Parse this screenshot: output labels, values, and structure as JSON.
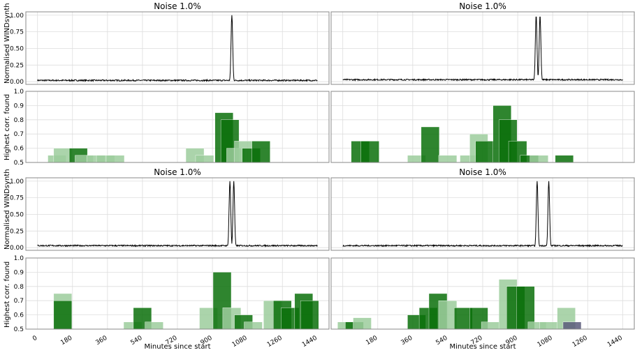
{
  "figure": {
    "ylabel_signal": "Normalised WINDsynth",
    "ylabel_corr": "Highest corr. found",
    "xlabel": "Minutes since start"
  },
  "colors": {
    "bar": "#2e8b2e",
    "bar_light": "#9ccc9c",
    "bar_dark": "#0a700a",
    "outlier": "#5a5a7a",
    "line": "#000000",
    "grid": "#dddddd"
  },
  "chart_data": [
    {
      "type": "line",
      "title": "Noise 1.0%",
      "ylabel": "Normalised WINDsynth",
      "xlim": [
        -60,
        1500
      ],
      "ylim": [
        -0.04,
        1.05
      ],
      "yticks": [
        "0.00",
        "0.25",
        "0.50",
        "0.75",
        "1.00"
      ],
      "noise": 0.02,
      "baseline": 0.02,
      "peaks": [
        [
          1000,
          1.0
        ]
      ]
    },
    {
      "type": "line",
      "title": "Noise 1.0%",
      "xlim": [
        -60,
        1500
      ],
      "ylim": [
        -0.04,
        1.05
      ],
      "yticks": [],
      "noise": 0.02,
      "baseline": 0.03,
      "peaks": [
        [
          995,
          1.0
        ],
        [
          1015,
          1.0
        ]
      ]
    },
    {
      "type": "bar",
      "ylabel": "Highest corr. found",
      "xlim": [
        -60,
        1500
      ],
      "ylim": [
        0.5,
        1.0
      ],
      "yticks": [
        "0.5",
        "0.6",
        "0.7",
        "0.8",
        "0.9",
        "1.0"
      ],
      "bars": [
        [
          100,
          0.55,
          "light"
        ],
        [
          130,
          0.6,
          "light"
        ],
        [
          210,
          0.6,
          "dark"
        ],
        [
          240,
          0.55,
          "light"
        ],
        [
          300,
          0.55,
          "light"
        ],
        [
          350,
          0.55,
          "light"
        ],
        [
          400,
          0.55,
          "light"
        ],
        [
          810,
          0.6,
          "light"
        ],
        [
          860,
          0.55,
          "light"
        ],
        [
          960,
          0.85,
          "dark"
        ],
        [
          990,
          0.8,
          "dark"
        ],
        [
          1020,
          0.6,
          "light"
        ],
        [
          1060,
          0.65,
          "light"
        ],
        [
          1100,
          0.6,
          "dark"
        ],
        [
          1150,
          0.65,
          "dark"
        ]
      ]
    },
    {
      "type": "bar",
      "xlim": [
        -60,
        1500
      ],
      "ylim": [
        0.5,
        1.0
      ],
      "yticks": [],
      "bars": [
        [
          90,
          0.65,
          "dark"
        ],
        [
          140,
          0.65,
          "dark"
        ],
        [
          380,
          0.55,
          "light"
        ],
        [
          450,
          0.75,
          "dark"
        ],
        [
          540,
          0.55,
          "light"
        ],
        [
          650,
          0.55,
          "light"
        ],
        [
          700,
          0.7,
          "light"
        ],
        [
          730,
          0.65,
          "dark"
        ],
        [
          820,
          0.9,
          "dark"
        ],
        [
          850,
          0.8,
          "dark"
        ],
        [
          900,
          0.65,
          "dark"
        ],
        [
          960,
          0.55,
          "dark"
        ],
        [
          1010,
          0.55,
          "light"
        ],
        [
          1140,
          0.55,
          "dark"
        ]
      ]
    },
    {
      "type": "line",
      "title": "Noise 1.0%",
      "ylabel": "Normalised WINDsynth",
      "xlim": [
        -60,
        1500
      ],
      "ylim": [
        -0.04,
        1.05
      ],
      "yticks": [
        "0.00",
        "0.25",
        "0.50",
        "0.75",
        "1.00"
      ],
      "noise": 0.02,
      "baseline": 0.03,
      "peaks": [
        [
          990,
          1.0
        ],
        [
          1010,
          1.0
        ]
      ]
    },
    {
      "type": "line",
      "title": "Noise 1.0%",
      "xlim": [
        -60,
        1500
      ],
      "ylim": [
        -0.04,
        1.05
      ],
      "yticks": [],
      "noise": 0.02,
      "baseline": 0.03,
      "peaks": [
        [
          1000,
          1.0
        ],
        [
          1060,
          1.0
        ]
      ]
    },
    {
      "type": "bar",
      "ylabel": "Highest corr. found",
      "xlabel": "Minutes since start",
      "xlim": [
        -60,
        1500
      ],
      "ylim": [
        0.5,
        1.0
      ],
      "yticks": [
        "0.5",
        "0.6",
        "0.7",
        "0.8",
        "0.9",
        "1.0"
      ],
      "xticks": [
        "0",
        "180",
        "360",
        "540",
        "720",
        "900",
        "1080",
        "1260",
        "1440"
      ],
      "xtick_values": [
        0,
        180,
        360,
        540,
        720,
        900,
        1080,
        1260,
        1440
      ],
      "bars": [
        [
          130,
          0.75,
          "light"
        ],
        [
          130,
          0.7,
          "dark"
        ],
        [
          490,
          0.55,
          "light"
        ],
        [
          540,
          0.65,
          "dark"
        ],
        [
          600,
          0.55,
          "light"
        ],
        [
          880,
          0.65,
          "light"
        ],
        [
          950,
          0.9,
          "dark"
        ],
        [
          1000,
          0.65,
          "light"
        ],
        [
          1060,
          0.6,
          "dark"
        ],
        [
          1110,
          0.55,
          "light"
        ],
        [
          1210,
          0.7,
          "light"
        ],
        [
          1260,
          0.7,
          "dark"
        ],
        [
          1300,
          0.65,
          "dark"
        ],
        [
          1370,
          0.75,
          "dark"
        ],
        [
          1400,
          0.7,
          "dark"
        ]
      ]
    },
    {
      "type": "bar",
      "xlabel": "Minutes since start",
      "xlim": [
        -60,
        1500
      ],
      "ylim": [
        0.5,
        1.0
      ],
      "yticks": [],
      "xticks": [
        "180",
        "360",
        "540",
        "720",
        "900",
        "1080",
        "1260",
        "1440"
      ],
      "xtick_values": [
        180,
        360,
        540,
        720,
        900,
        1080,
        1260,
        1440
      ],
      "bars": [
        [
          20,
          0.55,
          "light"
        ],
        [
          60,
          0.55,
          "dark"
        ],
        [
          100,
          0.58,
          "light"
        ],
        [
          380,
          0.6,
          "dark"
        ],
        [
          440,
          0.65,
          "dark"
        ],
        [
          490,
          0.75,
          "dark"
        ],
        [
          540,
          0.7,
          "light"
        ],
        [
          620,
          0.65,
          "dark"
        ],
        [
          700,
          0.65,
          "dark"
        ],
        [
          760,
          0.55,
          "light"
        ],
        [
          850,
          0.85,
          "light"
        ],
        [
          890,
          0.8,
          "dark"
        ],
        [
          940,
          0.8,
          "dark"
        ],
        [
          1000,
          0.55,
          "light"
        ],
        [
          1060,
          0.55,
          "light"
        ],
        [
          1150,
          0.65,
          "light"
        ],
        [
          1180,
          0.55,
          "outlier"
        ]
      ]
    }
  ]
}
